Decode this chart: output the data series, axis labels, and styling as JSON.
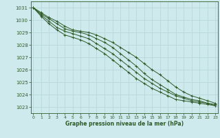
{
  "xlabel": "Graphe pression niveau de la mer (hPa)",
  "ylim": [
    1022.5,
    1031.5
  ],
  "xlim": [
    -0.3,
    23.3
  ],
  "yticks": [
    1023,
    1024,
    1025,
    1026,
    1027,
    1028,
    1029,
    1030,
    1031
  ],
  "xticks": [
    0,
    1,
    2,
    3,
    4,
    5,
    6,
    7,
    8,
    9,
    10,
    11,
    12,
    13,
    14,
    15,
    16,
    17,
    18,
    19,
    20,
    21,
    22,
    23
  ],
  "bg_color": "#ceeaed",
  "grid_color": "#b8d8dc",
  "line_color": "#2d5a27",
  "series": [
    [
      1031.0,
      1030.6,
      1030.2,
      1029.9,
      1029.5,
      1029.2,
      1029.1,
      1029.0,
      1028.8,
      1028.5,
      1028.2,
      1027.8,
      1027.4,
      1027.0,
      1026.5,
      1026.0,
      1025.6,
      1025.1,
      1024.6,
      1024.2,
      1023.9,
      1023.7,
      1023.5,
      1023.3
    ],
    [
      1031.0,
      1030.5,
      1030.1,
      1029.7,
      1029.3,
      1029.1,
      1029.0,
      1028.8,
      1028.5,
      1028.2,
      1027.8,
      1027.3,
      1026.8,
      1026.3,
      1025.7,
      1025.2,
      1024.8,
      1024.4,
      1024.0,
      1023.8,
      1023.6,
      1023.5,
      1023.3,
      1023.2
    ],
    [
      1031.0,
      1030.4,
      1029.9,
      1029.4,
      1029.1,
      1028.9,
      1028.7,
      1028.5,
      1028.1,
      1027.7,
      1027.3,
      1026.8,
      1026.3,
      1025.8,
      1025.3,
      1024.9,
      1024.5,
      1024.2,
      1023.9,
      1023.7,
      1023.5,
      1023.4,
      1023.3,
      1023.1
    ],
    [
      1031.0,
      1030.3,
      1029.7,
      1029.2,
      1028.8,
      1028.6,
      1028.4,
      1028.1,
      1027.7,
      1027.3,
      1026.8,
      1026.3,
      1025.8,
      1025.3,
      1024.9,
      1024.5,
      1024.2,
      1023.9,
      1023.6,
      1023.5,
      1023.4,
      1023.3,
      1023.2,
      1023.1
    ]
  ]
}
